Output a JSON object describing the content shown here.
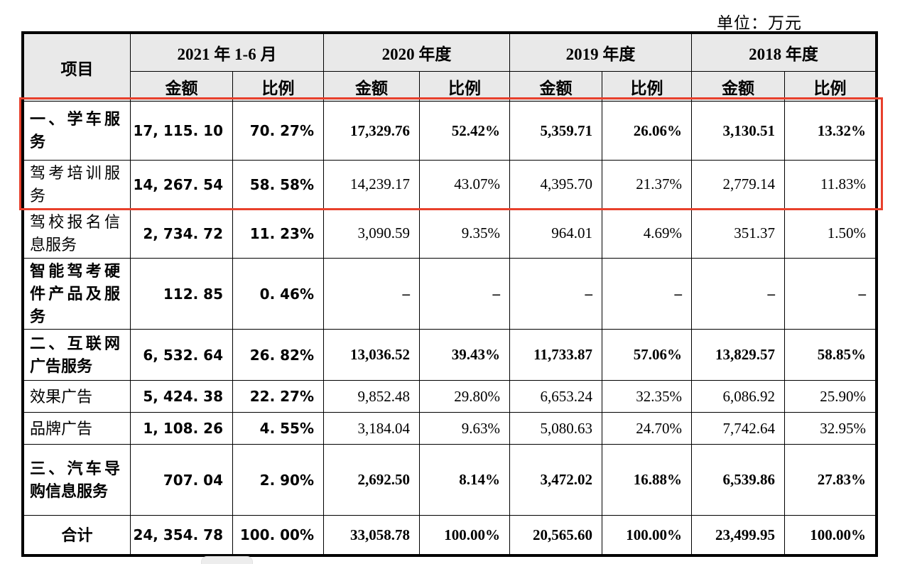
{
  "unit_label": "单位：万元",
  "table": {
    "item_header": "项目",
    "periods": [
      "2021 年 1-6 月",
      "2020 年度",
      "2019 年度",
      "2018 年度"
    ],
    "sub_headers": {
      "amount": "金额",
      "ratio": "比例"
    },
    "rows": [
      {
        "label": "一、学车服务",
        "bold": true,
        "is_total": false,
        "values": [
          "17, 115. 10",
          "70. 27%",
          "17,329.76",
          "52.42%",
          "5,359.71",
          "26.06%",
          "3,130.51",
          "13.32%"
        ]
      },
      {
        "label": "驾考培训服务",
        "bold": false,
        "is_total": false,
        "values": [
          "14, 267. 54",
          "58. 58%",
          "14,239.17",
          "43.07%",
          "4,395.70",
          "21.37%",
          "2,779.14",
          "11.83%"
        ]
      },
      {
        "label": "驾校报名信息服务",
        "bold": false,
        "is_total": false,
        "values": [
          "2, 734. 72",
          "11. 23%",
          "3,090.59",
          "9.35%",
          "964.01",
          "4.69%",
          "351.37",
          "1.50%"
        ]
      },
      {
        "label": "智能驾考硬件产品及服务",
        "bold": true,
        "is_total": false,
        "values": [
          "112. 85",
          "0. 46%",
          "–",
          "–",
          "–",
          "–",
          "–",
          "–"
        ]
      },
      {
        "label": "二、互联网广告服务",
        "bold": true,
        "is_total": false,
        "values": [
          "6, 532. 64",
          "26. 82%",
          "13,036.52",
          "39.43%",
          "11,733.87",
          "57.06%",
          "13,829.57",
          "58.85%"
        ]
      },
      {
        "label": "效果广告",
        "bold": false,
        "is_total": false,
        "values": [
          "5, 424. 38",
          "22. 27%",
          "9,852.48",
          "29.80%",
          "6,653.24",
          "32.35%",
          "6,086.92",
          "25.90%"
        ]
      },
      {
        "label": "品牌广告",
        "bold": false,
        "is_total": false,
        "values": [
          "1, 108. 26",
          "4. 55%",
          "3,184.04",
          "9.63%",
          "5,080.63",
          "24.70%",
          "7,742.64",
          "32.95%"
        ]
      },
      {
        "label": "三、汽车导购信息服务",
        "bold": true,
        "is_total": false,
        "values": [
          "707. 04",
          "2. 90%",
          "2,692.50",
          "8.14%",
          "3,472.02",
          "16.88%",
          "6,539.86",
          "27.83%"
        ]
      },
      {
        "label": "合计",
        "bold": true,
        "is_total": true,
        "values": [
          "24, 354. 78",
          "100. 00%",
          "33,058.78",
          "100.00%",
          "20,565.60",
          "100.00%",
          "23,499.95",
          "100.00%"
        ]
      }
    ]
  },
  "highlight": {
    "color": "#e8402c",
    "note": "red box around first two data rows"
  }
}
